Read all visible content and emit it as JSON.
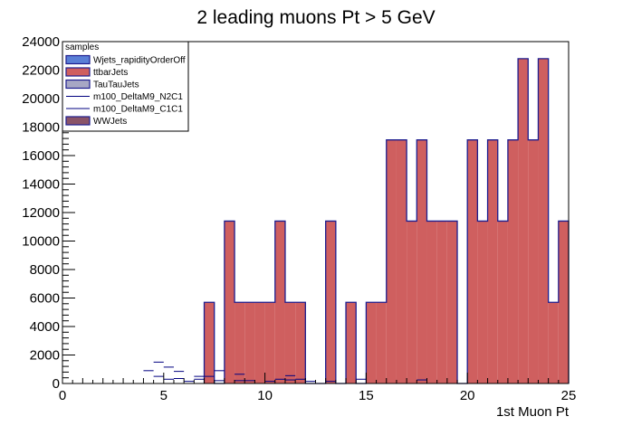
{
  "chart_data": {
    "type": "bar",
    "title": "2 leading muons Pt > 5 GeV",
    "xlabel": "1st Muon Pt",
    "ylabel": "",
    "xlim": [
      0,
      25
    ],
    "ylim": [
      0,
      24000
    ],
    "x_ticks": [
      "0",
      "5",
      "10",
      "15",
      "20",
      "25"
    ],
    "y_ticks": [
      "0",
      "2000",
      "4000",
      "6000",
      "8000",
      "10000",
      "12000",
      "14000",
      "16000",
      "18000",
      "20000",
      "22000",
      "24000"
    ],
    "bin_width": 0.5,
    "grid": false,
    "legend": {
      "title": "samples",
      "placement": "top-left",
      "entries": [
        {
          "name": "Wjets_rapidityOrderOff",
          "style": "fill",
          "fill": "#5a7fd6",
          "stroke": "#1d1d8f"
        },
        {
          "name": "ttbarJets",
          "style": "fill",
          "fill": "#cf5f5f",
          "stroke": "#1d1d8f"
        },
        {
          "name": "TauTauJets",
          "style": "fill",
          "fill": "#a7a7c4",
          "stroke": "#1d1d8f"
        },
        {
          "name": "m100_DeltaM9_N2C1",
          "style": "line",
          "stroke": "#000080"
        },
        {
          "name": "m100_DeltaM9_C1C1",
          "style": "line",
          "stroke": "#000080"
        },
        {
          "name": "WWJets",
          "style": "fill",
          "fill": "#8a5468",
          "stroke": "#1d1d8f"
        }
      ]
    },
    "series": [
      {
        "name": "ttbarJets",
        "fill": "#cf5f5f",
        "stroke": "#1d1d8f",
        "bin_edges_start": 7.0,
        "values": [
          5700,
          0,
          11400,
          5700,
          5700,
          5700,
          5700,
          11400,
          5700,
          5700,
          0,
          0,
          11400,
          0,
          5700,
          0,
          5700,
          5700,
          17100,
          17100,
          11400,
          17100,
          11400,
          11400,
          11400,
          0,
          17100,
          11400,
          17100,
          11400,
          17100,
          22800,
          17100,
          22800,
          5700,
          11400
        ]
      },
      {
        "name": "m100_DeltaM9_N2C1",
        "style": "markers",
        "stroke": "#000080",
        "points": [
          {
            "x": 4.25,
            "y": 900
          },
          {
            "x": 4.75,
            "y": 500
          },
          {
            "x": 4.75,
            "y": 1500
          },
          {
            "x": 5.25,
            "y": 1150
          },
          {
            "x": 5.25,
            "y": 300
          },
          {
            "x": 5.75,
            "y": 850
          },
          {
            "x": 5.75,
            "y": 350
          },
          {
            "x": 6.25,
            "y": 150
          },
          {
            "x": 6.75,
            "y": 500
          },
          {
            "x": 6.75,
            "y": 300
          },
          {
            "x": 7.25,
            "y": 500
          },
          {
            "x": 7.75,
            "y": 900
          },
          {
            "x": 7.75,
            "y": 200
          },
          {
            "x": 8.75,
            "y": 650
          },
          {
            "x": 8.75,
            "y": 200
          },
          {
            "x": 9.25,
            "y": 200
          },
          {
            "x": 10.25,
            "y": 150
          },
          {
            "x": 10.75,
            "y": 300
          },
          {
            "x": 11.25,
            "y": 550
          },
          {
            "x": 11.25,
            "y": 250
          },
          {
            "x": 11.75,
            "y": 300
          },
          {
            "x": 12.25,
            "y": 150
          },
          {
            "x": 13.25,
            "y": 150
          },
          {
            "x": 14.75,
            "y": 300
          },
          {
            "x": 17.75,
            "y": 250
          }
        ]
      }
    ]
  }
}
